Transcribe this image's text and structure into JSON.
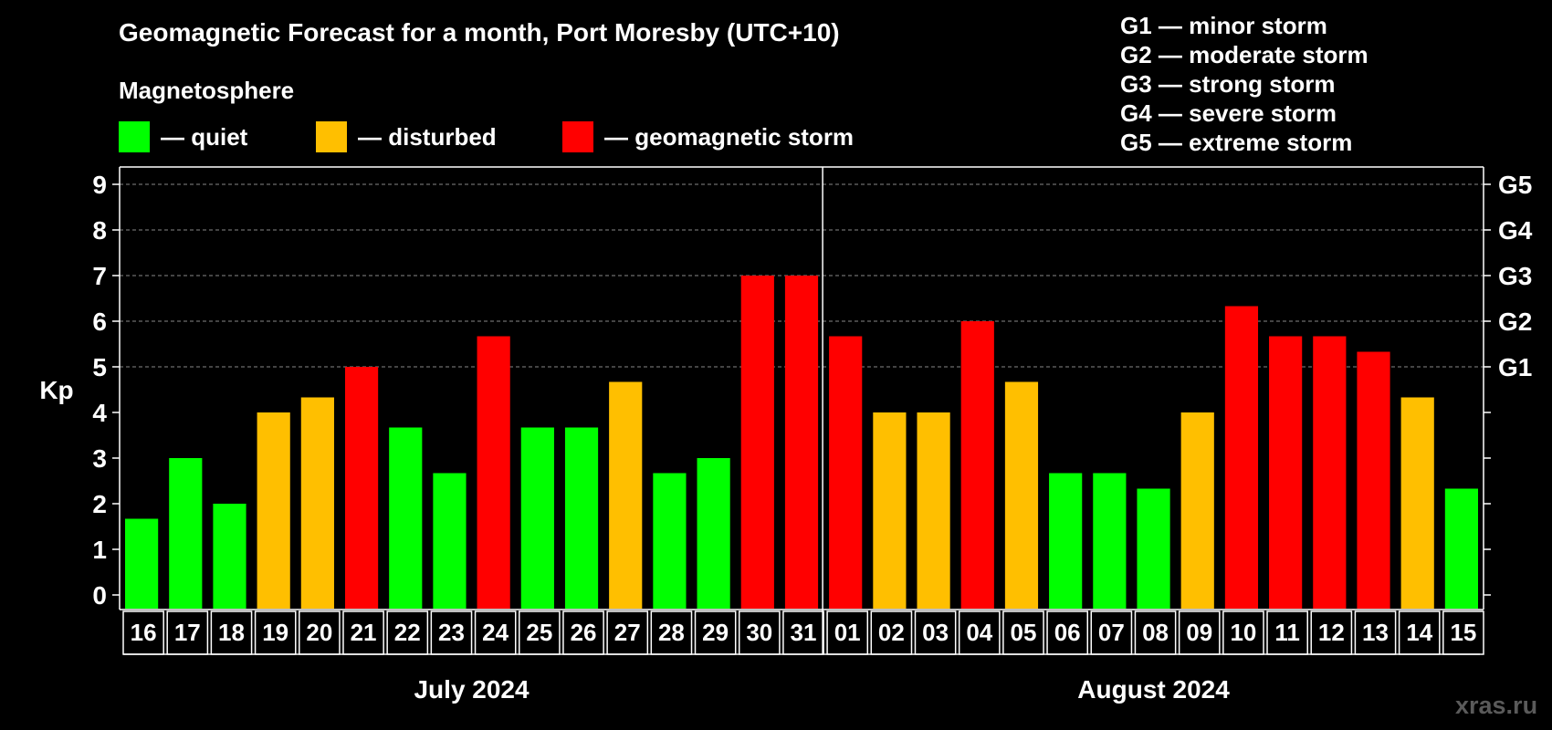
{
  "chart_data": {
    "type": "bar",
    "title": "Geomagnetic Forecast for a month, Port Moresby (UTC+10)",
    "subtitle": "Magnetosphere",
    "ylabel": "Kp",
    "ylim": [
      0,
      9
    ],
    "yticks": [
      "0",
      "1",
      "2",
      "3",
      "4",
      "5",
      "6",
      "7",
      "8",
      "9"
    ],
    "right_axis_labels": [
      {
        "kp": 5,
        "label": "G1"
      },
      {
        "kp": 6,
        "label": "G2"
      },
      {
        "kp": 7,
        "label": "G3"
      },
      {
        "kp": 8,
        "label": "G4"
      },
      {
        "kp": 9,
        "label": "G5"
      }
    ],
    "grid": "dashed horizontal at Kp 5-9",
    "categories": [
      "16",
      "17",
      "18",
      "19",
      "20",
      "21",
      "22",
      "23",
      "24",
      "25",
      "26",
      "27",
      "28",
      "29",
      "30",
      "31",
      "01",
      "02",
      "03",
      "04",
      "05",
      "06",
      "07",
      "08",
      "09",
      "10",
      "11",
      "12",
      "13",
      "14",
      "15"
    ],
    "values": [
      1.67,
      3.0,
      2.0,
      4.0,
      4.33,
      5.0,
      3.67,
      2.67,
      5.67,
      3.67,
      3.67,
      4.67,
      2.67,
      3.0,
      7.0,
      7.0,
      5.67,
      4.0,
      4.0,
      6.0,
      4.67,
      2.67,
      2.67,
      2.33,
      4.0,
      6.33,
      5.67,
      5.67,
      5.33,
      4.33,
      2.33
    ],
    "status": [
      "quiet",
      "quiet",
      "quiet",
      "disturbed",
      "disturbed",
      "storm",
      "quiet",
      "quiet",
      "storm",
      "quiet",
      "quiet",
      "disturbed",
      "quiet",
      "quiet",
      "storm",
      "storm",
      "storm",
      "disturbed",
      "disturbed",
      "storm",
      "disturbed",
      "quiet",
      "quiet",
      "quiet",
      "disturbed",
      "storm",
      "storm",
      "storm",
      "storm",
      "disturbed",
      "quiet"
    ],
    "months": [
      {
        "label": "July 2024",
        "start": 0,
        "end": 15
      },
      {
        "label": "August 2024",
        "start": 16,
        "end": 30
      }
    ],
    "colors": {
      "quiet": "#00ff00",
      "disturbed": "#ffbf00",
      "storm": "#ff0000"
    },
    "legend": [
      {
        "key": "quiet",
        "label": "— quiet"
      },
      {
        "key": "disturbed",
        "label": "— disturbed"
      },
      {
        "key": "storm",
        "label": "— geomagnetic storm"
      }
    ],
    "storm_scale": [
      "G1 — minor storm",
      "G2 — moderate storm",
      "G3 — strong storm",
      "G4 — severe storm",
      "G5 — extreme storm"
    ]
  },
  "watermark": "xras.ru"
}
